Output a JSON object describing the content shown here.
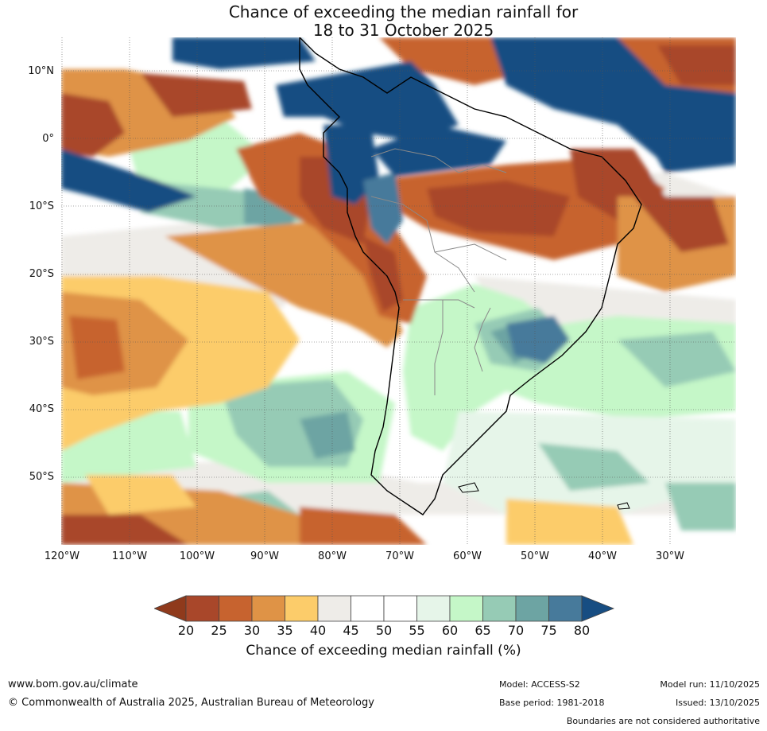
{
  "title": {
    "line1": "Chance of exceeding the median rainfall for",
    "line2": "18 to 31 October 2025"
  },
  "map": {
    "region": "South America",
    "latitude_labels": [
      "10°N",
      "0°",
      "10°S",
      "20°S",
      "30°S",
      "40°S",
      "50°S"
    ],
    "longitude_labels": [
      "120°W",
      "110°W",
      "100°W",
      "90°W",
      "80°W",
      "70°W",
      "60°W",
      "50°W",
      "40°W",
      "30°W"
    ]
  },
  "legend": {
    "title": "Chance of exceeding median rainfall (%)",
    "ticks": [
      "20",
      "25",
      "30",
      "35",
      "40",
      "45",
      "50",
      "55",
      "60",
      "65",
      "70",
      "75",
      "80"
    ],
    "colors": [
      "#8f3a1c",
      "#a9472a",
      "#c7632f",
      "#df9346",
      "#fccc6a",
      "#eeece8",
      "#ffffff",
      "#ffffff",
      "#e6f5e9",
      "#c5f7c8",
      "#96cbb5",
      "#6da4a3",
      "#477a9b",
      "#174d82"
    ]
  },
  "footer": {
    "website": "www.bom.gov.au/climate",
    "copyright": "© Commonwealth of Australia 2025, Australian Bureau of Meteorology",
    "model": "Model: ACCESS-S2",
    "base_period": "Base period: 1981-2018",
    "model_run": "Model run: 11/10/2025",
    "issued": "Issued: 13/10/2025",
    "disclaimer": "Boundaries are not considered authoritative"
  }
}
